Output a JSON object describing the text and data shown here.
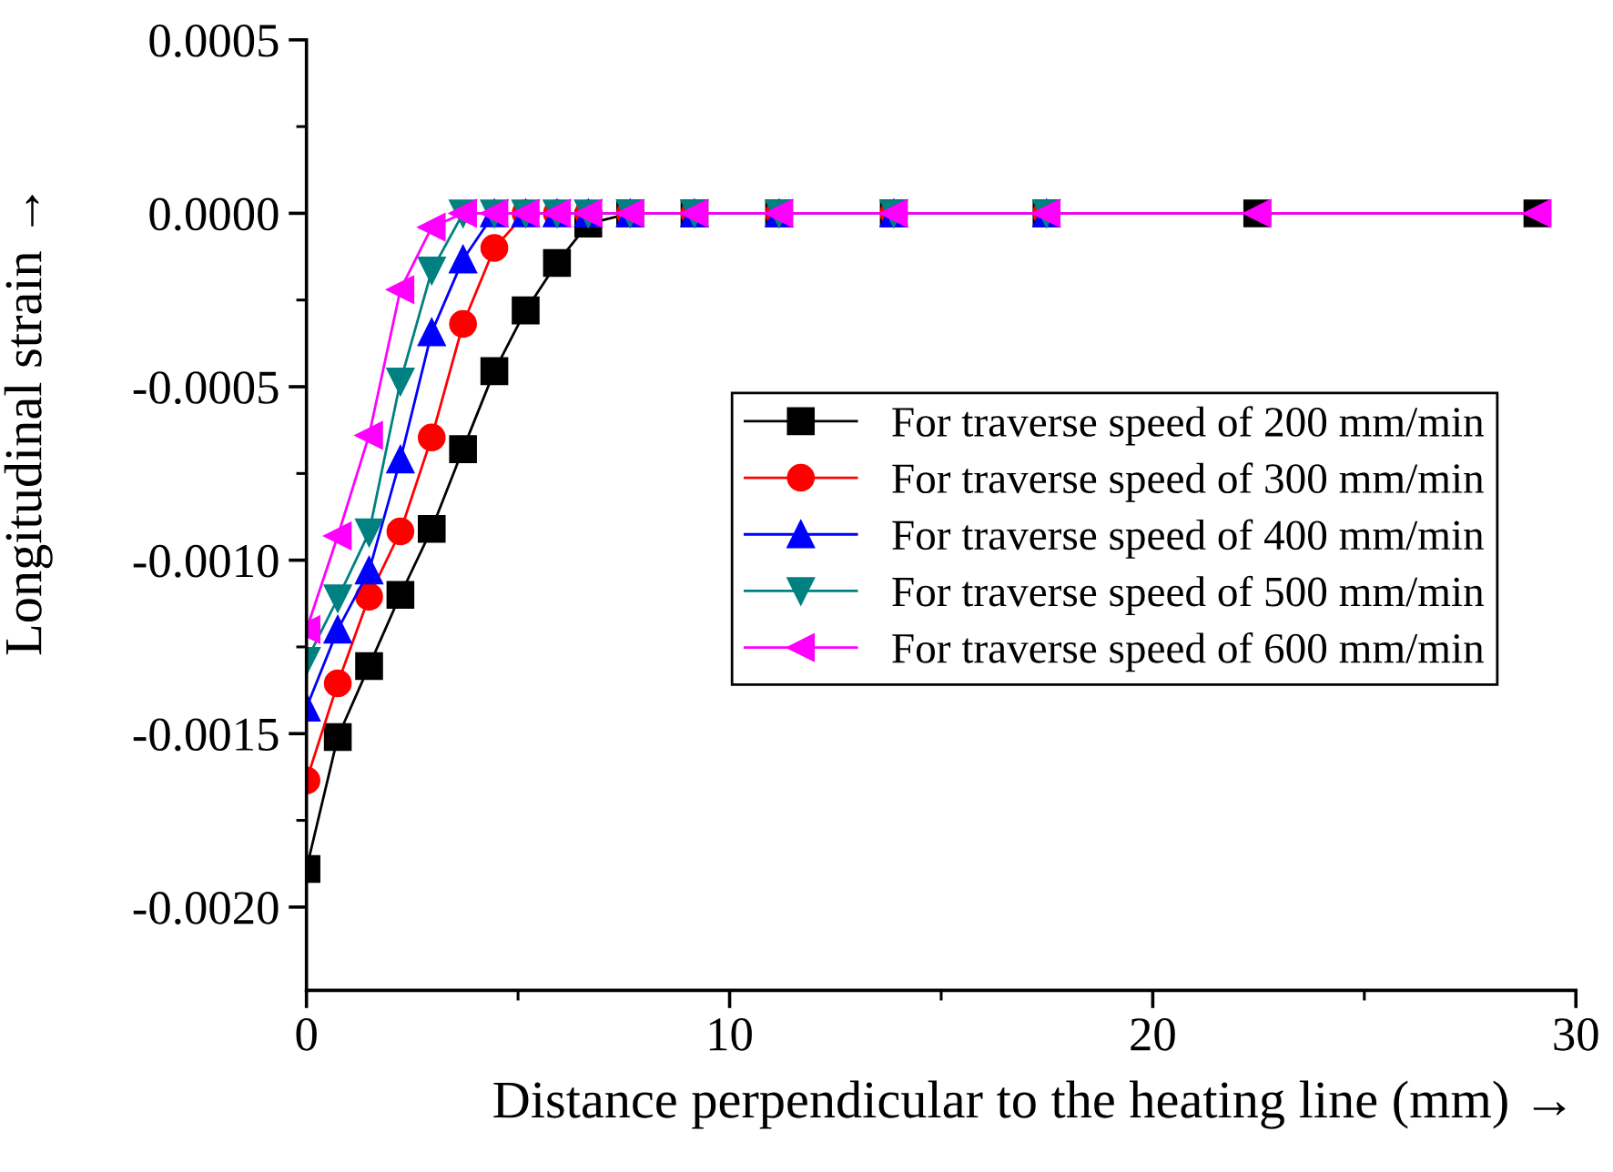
{
  "chart_data": {
    "type": "line",
    "xlabel": "Distance perpendicular to the heating line (mm) →",
    "ylabel": "Longitudinal strain →",
    "x": [
      0,
      0.74,
      1.48,
      2.22,
      2.96,
      3.7,
      4.44,
      5.18,
      5.92,
      6.66,
      7.65,
      9.17,
      11.17,
      13.88,
      17.49,
      22.47,
      29.09
    ],
    "series": [
      {
        "name": "For traverse speed of 200 mm/min",
        "color": "#000000",
        "marker": "square",
        "values": [
          -0.00189,
          -0.00151,
          -0.001305,
          -0.0011,
          -0.00091,
          -0.00068,
          -0.000455,
          -0.00028,
          -0.000143,
          -3e-05,
          0,
          0,
          0,
          0,
          0,
          0,
          0
        ]
      },
      {
        "name": "For traverse speed of 300 mm/min",
        "color": "#ff0000",
        "marker": "circle",
        "values": [
          -0.001635,
          -0.001355,
          -0.001105,
          -0.000917,
          -0.000646,
          -0.000319,
          -0.0001,
          0,
          0,
          0,
          0,
          0,
          0,
          0,
          0,
          null,
          null
        ]
      },
      {
        "name": "For traverse speed of 400 mm/min",
        "color": "#0000ff",
        "marker": "triangle",
        "values": [
          -0.001425,
          -0.0012,
          -0.00103,
          -0.00071,
          -0.000343,
          -0.000133,
          0,
          0,
          0,
          0,
          0,
          0,
          0,
          0,
          0,
          null,
          null
        ]
      },
      {
        "name": "For traverse speed of 500 mm/min",
        "color": "#008080",
        "marker": "triangle-down",
        "values": [
          -0.00129,
          -0.00111,
          -0.00092,
          -0.000485,
          -0.000165,
          0,
          0,
          0,
          0,
          0,
          0,
          0,
          0,
          0,
          0,
          null,
          null
        ]
      },
      {
        "name": "For traverse speed of 600 mm/min",
        "color": "#ff00ff",
        "marker": "triangle-left",
        "values": [
          -0.0012,
          -0.00093,
          -0.00064,
          -0.00022,
          -4e-05,
          0,
          0,
          0,
          0,
          0,
          0,
          0,
          0,
          0,
          0,
          0,
          0
        ]
      }
    ],
    "xlim": [
      0,
      30
    ],
    "ylim": [
      -0.00224,
      0.0005
    ],
    "xticks": [
      0,
      {
        "value": 5,
        "label": null
      },
      10,
      {
        "value": 15,
        "label": null
      },
      20,
      {
        "value": 25,
        "label": null
      },
      30
    ],
    "yticks": [
      {
        "value": 0.0005,
        "label": "0.0005"
      },
      {
        "value": 0.00025,
        "label": null
      },
      {
        "value": 0,
        "label": "0.0000"
      },
      {
        "value": -0.00025,
        "label": null
      },
      {
        "value": -0.0005,
        "label": "-0.0005"
      },
      {
        "value": -0.00075,
        "label": null
      },
      {
        "value": -0.001,
        "label": "-0.0010"
      },
      {
        "value": -0.00125,
        "label": null
      },
      {
        "value": -0.0015,
        "label": "-0.0015"
      },
      {
        "value": -0.00175,
        "label": null
      },
      {
        "value": -0.002,
        "label": "-0.0020"
      }
    ],
    "legend": "right",
    "grid": false,
    "line_style": "solid"
  }
}
